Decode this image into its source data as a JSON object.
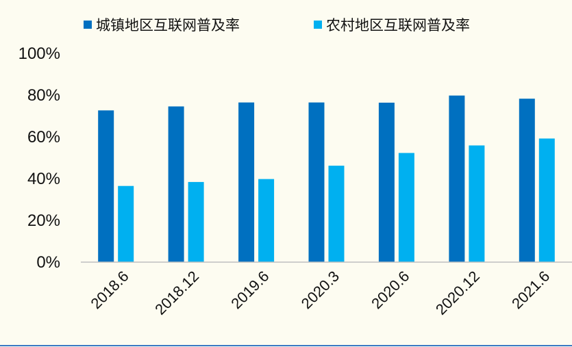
{
  "chart_data": {
    "type": "bar",
    "title": "",
    "xlabel": "",
    "ylabel": "",
    "categories": [
      "2018.6",
      "2018.12",
      "2019.6",
      "2020.3",
      "2020.6",
      "2020.12",
      "2021.6"
    ],
    "series": [
      {
        "name": "城镇地区互联网普及率",
        "color": "#0070c0",
        "values": [
          72.7,
          74.6,
          76.5,
          76.5,
          76.4,
          79.8,
          78.3
        ]
      },
      {
        "name": "农村地区互联网普及率",
        "color": "#00b0f0",
        "values": [
          36.5,
          38.4,
          39.8,
          46.2,
          52.3,
          55.9,
          59.2
        ]
      }
    ],
    "ylim": [
      0,
      100
    ],
    "yticks": [
      0,
      20,
      40,
      60,
      80,
      100
    ],
    "ytick_labels": [
      "0%",
      "20%",
      "40%",
      "60%",
      "80%",
      "100%"
    ],
    "legend_position": "top",
    "grid": false
  }
}
